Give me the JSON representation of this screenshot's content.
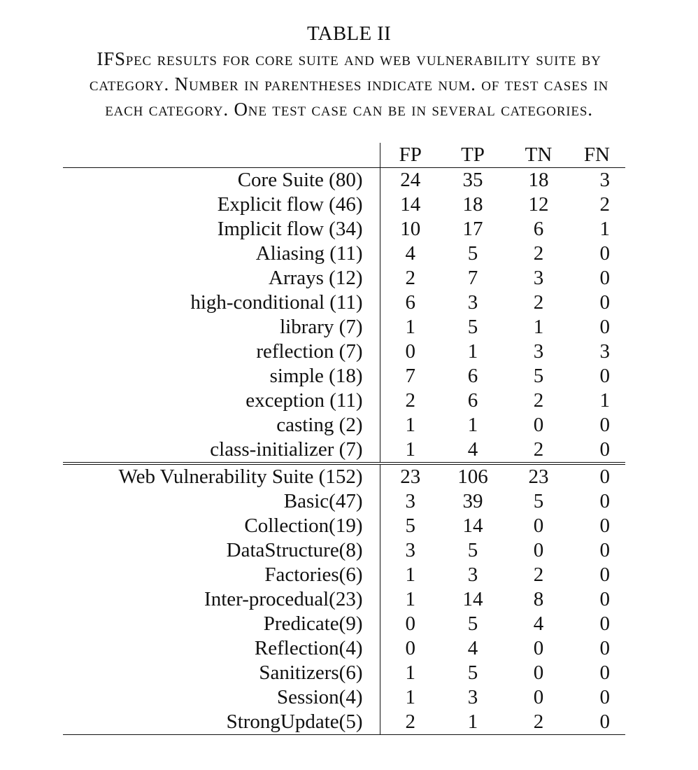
{
  "caption": {
    "title": "TABLE II",
    "lines": [
      "IFSpec results for core suite and web vulnerability suite by",
      "category. Number in parentheses indicate num. of test cases in",
      "each category. One test case can be in several categories."
    ]
  },
  "table": {
    "columns": [
      "FP",
      "TP",
      "TN",
      "FN"
    ],
    "core": {
      "summary": {
        "label": "Core Suite (80)",
        "fp": "24",
        "tp": "35",
        "tn": "18",
        "fn": "3"
      },
      "rows": [
        {
          "label": "Explicit flow (46)",
          "fp": "14",
          "tp": "18",
          "tn": "12",
          "fn": "2"
        },
        {
          "label": "Implicit flow (34)",
          "fp": "10",
          "tp": "17",
          "tn": "6",
          "fn": "1"
        },
        {
          "label": "Aliasing (11)",
          "fp": "4",
          "tp": "5",
          "tn": "2",
          "fn": "0"
        },
        {
          "label": "Arrays (12)",
          "fp": "2",
          "tp": "7",
          "tn": "3",
          "fn": "0"
        },
        {
          "label": "high-conditional (11)",
          "fp": "6",
          "tp": "3",
          "tn": "2",
          "fn": "0"
        },
        {
          "label": "library (7)",
          "fp": "1",
          "tp": "5",
          "tn": "1",
          "fn": "0"
        },
        {
          "label": "reflection (7)",
          "fp": "0",
          "tp": "1",
          "tn": "3",
          "fn": "3"
        },
        {
          "label": "simple (18)",
          "fp": "7",
          "tp": "6",
          "tn": "5",
          "fn": "0"
        },
        {
          "label": "exception (11)",
          "fp": "2",
          "tp": "6",
          "tn": "2",
          "fn": "1"
        },
        {
          "label": "casting (2)",
          "fp": "1",
          "tp": "1",
          "tn": "0",
          "fn": "0"
        },
        {
          "label": "class-initializer (7)",
          "fp": "1",
          "tp": "4",
          "tn": "2",
          "fn": "0"
        }
      ]
    },
    "web": {
      "summary": {
        "label": "Web Vulnerability Suite (152)",
        "fp": "23",
        "tp": "106",
        "tn": "23",
        "fn": "0"
      },
      "rows": [
        {
          "label": "Basic(47)",
          "fp": "3",
          "tp": "39",
          "tn": "5",
          "fn": "0"
        },
        {
          "label": "Collection(19)",
          "fp": "5",
          "tp": "14",
          "tn": "0",
          "fn": "0"
        },
        {
          "label": "DataStructure(8)",
          "fp": "3",
          "tp": "5",
          "tn": "0",
          "fn": "0"
        },
        {
          "label": "Factories(6)",
          "fp": "1",
          "tp": "3",
          "tn": "2",
          "fn": "0"
        },
        {
          "label": "Inter-procedual(23)",
          "fp": "1",
          "tp": "14",
          "tn": "8",
          "fn": "0"
        },
        {
          "label": "Predicate(9)",
          "fp": "0",
          "tp": "5",
          "tn": "4",
          "fn": "0"
        },
        {
          "label": "Reflection(4)",
          "fp": "0",
          "tp": "4",
          "tn": "0",
          "fn": "0"
        },
        {
          "label": "Sanitizers(6)",
          "fp": "1",
          "tp": "5",
          "tn": "0",
          "fn": "0"
        },
        {
          "label": "Session(4)",
          "fp": "1",
          "tp": "3",
          "tn": "0",
          "fn": "0"
        },
        {
          "label": "StrongUpdate(5)",
          "fp": "2",
          "tp": "1",
          "tn": "2",
          "fn": "0"
        }
      ]
    }
  }
}
